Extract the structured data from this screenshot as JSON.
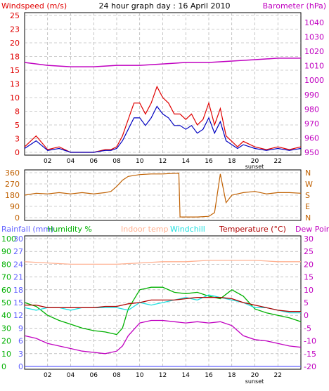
{
  "title": "24 hour graph day : 16 April 2010",
  "colors": {
    "wind": "#e00000",
    "gust": "#e00000",
    "avg": "#0000c0",
    "baro": "#c000c0",
    "dir": "#c06000",
    "rain": "#6060ff",
    "humidity": "#00b000",
    "indoor": "#ffb090",
    "windchill": "#20e0e0",
    "temp": "#b00000",
    "dew": "#c000c0",
    "grid": "#a0a0a0"
  },
  "x_ticks": [
    "02",
    "04",
    "06",
    "08",
    "10",
    "12",
    "14",
    "16",
    "18",
    "20",
    "22"
  ],
  "sunset_label": "sunset",
  "chart_data": [
    {
      "type": "line",
      "title": "24 hour graph day : 16 April 2010",
      "x_range": [
        0,
        24
      ],
      "left_axis": {
        "label": "Windspeed (m/s)",
        "ticks": [
          "25",
          "23",
          "20",
          "18",
          "15",
          "13",
          "10",
          "8",
          "5",
          "3",
          "0"
        ],
        "ylim": [
          0,
          25
        ]
      },
      "right_axis": {
        "label": "Barometer (hPa)",
        "ticks": [
          "1040",
          "1030",
          "1020",
          "1010",
          "1000",
          "990",
          "980",
          "970",
          "960",
          "950"
        ],
        "ylim": [
          947,
          1043
        ]
      },
      "series": [
        {
          "name": "Windspeed (m/s)",
          "x": [
            0,
            1,
            2,
            3,
            4,
            5,
            6,
            7,
            7.5,
            8,
            8.5,
            9,
            9.5,
            10,
            10.5,
            11,
            11.5,
            12,
            12.5,
            13,
            13.5,
            14,
            14.5,
            15,
            15.5,
            16,
            16.5,
            17,
            17.5,
            18,
            18.5,
            19,
            20,
            21,
            22,
            23,
            24
          ],
          "values": [
            1,
            3,
            0.5,
            1,
            0,
            0,
            0,
            0.5,
            0.5,
            1,
            3,
            6,
            9,
            9,
            7,
            9,
            12,
            10,
            9,
            7,
            7,
            6,
            7,
            5,
            6,
            9,
            5,
            8,
            3,
            2,
            1,
            2,
            1,
            0.5,
            1,
            0.5,
            1
          ]
        },
        {
          "name": "Barometer (hPa)",
          "x": [
            0,
            2,
            4,
            6,
            8,
            10,
            12,
            14,
            16,
            18,
            20,
            22,
            24
          ],
          "values": [
            1010,
            1008,
            1007,
            1007,
            1008,
            1008,
            1009,
            1010,
            1010,
            1011,
            1012,
            1013,
            1013
          ]
        }
      ]
    },
    {
      "type": "scatter",
      "x_range": [
        0,
        24
      ],
      "left_axis": {
        "label": "",
        "ticks": [
          "360",
          "270",
          "180",
          "90",
          "0"
        ],
        "ylim": [
          0,
          360
        ]
      },
      "right_axis": {
        "label": "",
        "ticks": [
          "N",
          "W",
          "S",
          "E",
          "N"
        ]
      },
      "series": [
        {
          "name": "Wind direction",
          "x": [
            0,
            1,
            2,
            3,
            4,
            5,
            6,
            7,
            7.5,
            8,
            8.5,
            9,
            10,
            11,
            12,
            13,
            13.4,
            13.5,
            14,
            15,
            16,
            16.5,
            17,
            17.5,
            18,
            18.5,
            19,
            20,
            21,
            22,
            23,
            24
          ],
          "values": [
            180,
            195,
            190,
            200,
            190,
            200,
            190,
            200,
            210,
            250,
            300,
            330,
            345,
            350,
            350,
            355,
            355,
            5,
            5,
            5,
            10,
            40,
            350,
            120,
            180,
            190,
            200,
            210,
            190,
            200,
            200,
            195
          ]
        }
      ]
    },
    {
      "type": "line",
      "x_range": [
        0,
        24
      ],
      "left_axis": {
        "ticks_outer": [
          "100",
          "90",
          "80",
          "70",
          "60",
          "50",
          "40",
          "30",
          "20",
          "10",
          "0"
        ],
        "ticks_inner": [
          "30",
          "27",
          "24",
          "21",
          "18",
          "15",
          "12",
          "9",
          "6",
          "3",
          "0"
        ]
      },
      "right_axis": {
        "label": "Dew Point",
        "ticks": [
          "30",
          "25",
          "20",
          "15",
          "10",
          "5",
          "0",
          "-5",
          "-10",
          "-15",
          "-20"
        ],
        "ylim": [
          -20,
          30
        ]
      },
      "legend": [
        "Rainfall (mm)",
        "Humidity %",
        "Indoor temp",
        "Windchill",
        "Temperature (°C)",
        "Dew Point"
      ],
      "series": [
        {
          "name": "Rainfall (mm)",
          "x": [
            0,
            24
          ],
          "values": [
            0,
            0
          ]
        },
        {
          "name": "Humidity %",
          "x": [
            0,
            1,
            2,
            3,
            4,
            5,
            6,
            7,
            8,
            8.5,
            9,
            10,
            11,
            12,
            13,
            14,
            15,
            16,
            17,
            18,
            19,
            20,
            21,
            22,
            23,
            24
          ],
          "values": [
            50,
            47,
            40,
            36,
            33,
            30,
            28,
            27,
            25,
            30,
            45,
            60,
            62,
            62,
            58,
            57,
            58,
            55,
            53,
            60,
            55,
            45,
            42,
            40,
            38,
            35
          ]
        },
        {
          "name": "Indoor temp",
          "x": [
            0,
            2,
            4,
            6,
            8,
            10,
            12,
            14,
            16,
            18,
            20,
            22,
            24
          ],
          "values": [
            21,
            20.5,
            20,
            20,
            20,
            20.5,
            21,
            21,
            21.5,
            21.5,
            21.5,
            21,
            21
          ]
        },
        {
          "name": "Windchill",
          "x": [
            0,
            1,
            2,
            3,
            4,
            5,
            6,
            7,
            8,
            9,
            10,
            11,
            12,
            13,
            14,
            15,
            16,
            17,
            18,
            19,
            20,
            21,
            22,
            23,
            24
          ],
          "values": [
            3,
            2,
            3,
            3,
            2,
            3,
            3,
            3,
            3,
            2,
            5,
            4,
            5,
            6,
            7,
            6,
            8,
            7,
            6,
            5,
            3,
            3,
            2,
            1,
            1
          ]
        },
        {
          "name": "Temperature (°C)",
          "x": [
            0,
            1,
            2,
            3,
            4,
            5,
            6,
            7,
            8,
            9,
            10,
            11,
            12,
            13,
            14,
            15,
            16,
            17,
            18,
            19,
            20,
            21,
            22,
            23,
            24
          ],
          "values": [
            4,
            4,
            3,
            3,
            3,
            3,
            3,
            3.5,
            3.5,
            4.5,
            5,
            6,
            6,
            6,
            6.5,
            7,
            7,
            7,
            6.5,
            5,
            4,
            3,
            2,
            1.5,
            1.5
          ]
        },
        {
          "name": "Dew Point",
          "x": [
            0,
            1,
            2,
            3,
            4,
            5,
            6,
            7,
            8,
            8.5,
            9,
            10,
            11,
            12,
            13,
            14,
            15,
            16,
            17,
            18,
            18.5,
            19,
            20,
            21,
            22,
            23,
            24
          ],
          "values": [
            -8,
            -9,
            -11,
            -12,
            -13,
            -14,
            -14.5,
            -15,
            -14,
            -12,
            -8,
            -3,
            -2,
            -2,
            -2.5,
            -3,
            -2.5,
            -3,
            -2.5,
            -4,
            -6,
            -8,
            -9.5,
            -10,
            -11,
            -12,
            -12.5
          ]
        }
      ]
    }
  ]
}
